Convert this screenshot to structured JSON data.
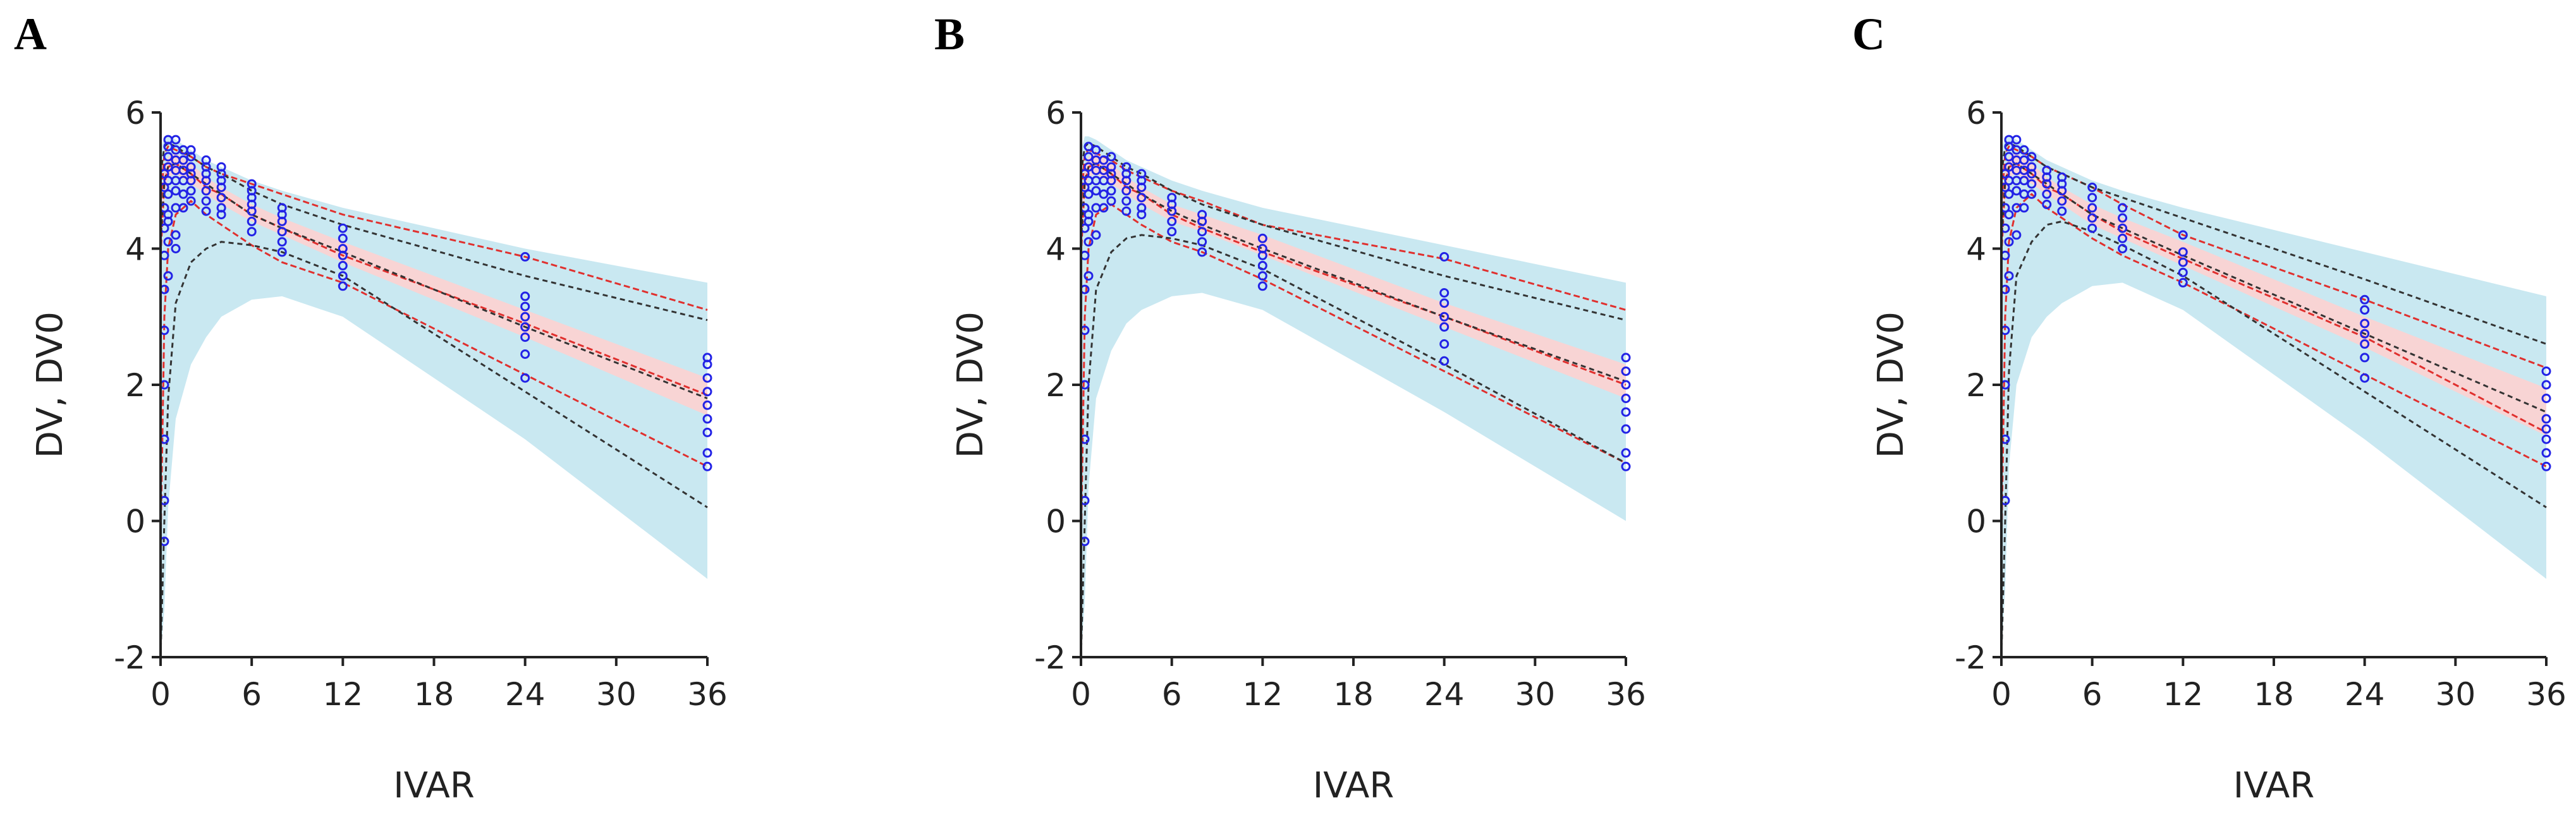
{
  "figure": {
    "panels": [
      "A",
      "B",
      "C"
    ]
  },
  "colors": {
    "blue_band": "#c9e8f1",
    "pink_band": "#f8d4d4",
    "observed_line": "#e0302e",
    "predicted_line": "#333333",
    "points": "#2323e6",
    "axis": "#222222"
  },
  "chart_data": [
    {
      "panel": "A",
      "type": "line",
      "xlabel": "IVAR",
      "ylabel": "DV, DV0",
      "xlim": [
        0,
        36
      ],
      "ylim": [
        -2,
        6
      ],
      "xticks": [
        0,
        6,
        12,
        18,
        24,
        30,
        36
      ],
      "yticks": [
        -2,
        0,
        2,
        4,
        6
      ],
      "x": [
        0,
        0.25,
        0.5,
        1,
        2,
        3,
        4,
        6,
        8,
        12,
        24,
        36
      ],
      "bands": [
        {
          "name": "prediction interval (blue)",
          "upper": [
            5.45,
            5.65,
            5.65,
            5.6,
            5.45,
            5.3,
            5.2,
            5.0,
            4.85,
            4.6,
            4.0,
            3.5
          ],
          "lower": [
            -2.0,
            -1.3,
            0.2,
            1.5,
            2.3,
            2.7,
            3.0,
            3.25,
            3.3,
            3.0,
            1.2,
            -0.85
          ]
        },
        {
          "name": "median interval (pink)",
          "upper": [
            4.4,
            5.2,
            5.35,
            5.4,
            5.25,
            5.05,
            4.9,
            4.65,
            4.45,
            4.1,
            3.1,
            2.1
          ],
          "lower": [
            3.8,
            4.8,
            5.05,
            5.1,
            4.95,
            4.8,
            4.65,
            4.4,
            4.2,
            3.8,
            2.7,
            1.55
          ]
        }
      ],
      "series": [
        {
          "name": "observed 95th",
          "style": "red-dash",
          "values": [
            4.6,
            5.4,
            5.5,
            5.45,
            5.35,
            5.2,
            5.1,
            4.95,
            4.8,
            4.5,
            3.88,
            3.1
          ]
        },
        {
          "name": "observed median",
          "style": "red-dash",
          "values": [
            3.9,
            4.95,
            5.2,
            5.25,
            5.1,
            4.9,
            4.8,
            4.5,
            4.3,
            3.9,
            2.9,
            1.85
          ]
        },
        {
          "name": "observed 5th",
          "style": "red-dash",
          "values": [
            -0.4,
            3.0,
            4.0,
            4.5,
            4.7,
            4.5,
            4.35,
            4.05,
            3.8,
            3.5,
            2.15,
            0.8
          ]
        },
        {
          "name": "predicted 95th",
          "style": "black-dash",
          "values": [
            5.1,
            5.5,
            5.55,
            5.5,
            5.35,
            5.2,
            5.1,
            4.85,
            4.65,
            4.35,
            3.6,
            2.95
          ]
        },
        {
          "name": "predicted median",
          "style": "black-dash",
          "values": [
            4.1,
            5.0,
            5.2,
            5.25,
            5.1,
            4.95,
            4.8,
            4.5,
            4.3,
            3.95,
            2.85,
            1.8
          ]
        },
        {
          "name": "predicted 5th",
          "style": "black-dash",
          "values": [
            -2.0,
            0.0,
            1.8,
            3.2,
            3.8,
            4.0,
            4.1,
            4.05,
            3.95,
            3.6,
            1.9,
            0.2
          ]
        }
      ],
      "observations": [
        {
          "x": 0.25,
          "y": [
            0.3,
            1.2,
            2.0,
            2.8,
            3.4,
            3.9,
            4.3,
            4.6,
            4.9,
            5.1,
            -0.3
          ]
        },
        {
          "x": 0.5,
          "y": [
            3.6,
            4.1,
            4.5,
            4.8,
            5.0,
            5.2,
            5.35,
            5.5,
            5.6,
            4.4
          ]
        },
        {
          "x": 1,
          "y": [
            4.2,
            4.6,
            4.85,
            5.0,
            5.15,
            5.3,
            5.45,
            5.6,
            4.0
          ]
        },
        {
          "x": 1.5,
          "y": [
            4.6,
            4.8,
            5.0,
            5.15,
            5.3,
            5.45
          ]
        },
        {
          "x": 2,
          "y": [
            4.7,
            4.85,
            5.0,
            5.1,
            5.2,
            5.35,
            5.45
          ]
        },
        {
          "x": 3,
          "y": [
            4.55,
            4.7,
            4.85,
            5.0,
            5.1,
            5.2,
            5.3
          ]
        },
        {
          "x": 4,
          "y": [
            4.5,
            4.6,
            4.75,
            4.9,
            5.0,
            5.1,
            5.2
          ]
        },
        {
          "x": 6,
          "y": [
            4.25,
            4.4,
            4.55,
            4.65,
            4.75,
            4.85,
            4.95
          ]
        },
        {
          "x": 8,
          "y": [
            3.95,
            4.1,
            4.25,
            4.4,
            4.5,
            4.6
          ]
        },
        {
          "x": 12,
          "y": [
            3.45,
            3.6,
            3.75,
            3.9,
            4.0,
            4.15,
            4.3
          ]
        },
        {
          "x": 24,
          "y": [
            2.1,
            2.45,
            2.7,
            2.85,
            3.0,
            3.15,
            3.3,
            3.88
          ]
        },
        {
          "x": 36,
          "y": [
            0.8,
            1.0,
            1.3,
            1.5,
            1.7,
            1.9,
            2.1,
            2.3,
            2.4
          ]
        }
      ]
    },
    {
      "panel": "B",
      "type": "line",
      "xlabel": "IVAR",
      "ylabel": "DV, DV0",
      "xlim": [
        0,
        36
      ],
      "ylim": [
        -2,
        6
      ],
      "xticks": [
        0,
        6,
        12,
        18,
        24,
        30,
        36
      ],
      "yticks": [
        -2,
        0,
        2,
        4,
        6
      ],
      "x": [
        0,
        0.25,
        0.5,
        1,
        2,
        3,
        4,
        6,
        8,
        12,
        24,
        36
      ],
      "bands": [
        {
          "name": "prediction interval (blue)",
          "upper": [
            5.45,
            5.65,
            5.65,
            5.6,
            5.45,
            5.3,
            5.2,
            5.0,
            4.85,
            4.6,
            4.05,
            3.5
          ],
          "lower": [
            -2.0,
            -1.2,
            0.5,
            1.8,
            2.5,
            2.9,
            3.1,
            3.3,
            3.35,
            3.1,
            1.6,
            0.0
          ]
        },
        {
          "name": "median interval (pink)",
          "upper": [
            4.4,
            5.2,
            5.35,
            5.4,
            5.25,
            5.05,
            4.9,
            4.65,
            4.5,
            4.2,
            3.2,
            2.3
          ]
        },
        {
          "name": "median interval lower",
          "upper": [
            3.8,
            4.8,
            5.05,
            5.1,
            4.95,
            4.8,
            4.65,
            4.4,
            4.25,
            3.9,
            2.85,
            1.8
          ]
        }
      ],
      "series": [
        {
          "name": "observed 95th",
          "style": "red-dash",
          "values": [
            4.6,
            5.4,
            5.45,
            5.4,
            5.3,
            5.15,
            5.05,
            4.85,
            4.7,
            4.35,
            3.85,
            3.1
          ]
        },
        {
          "name": "observed median",
          "style": "red-dash",
          "values": [
            3.9,
            4.95,
            5.2,
            5.25,
            5.1,
            4.9,
            4.8,
            4.5,
            4.3,
            3.95,
            3.0,
            2.0
          ]
        },
        {
          "name": "observed 5th",
          "style": "red-dash",
          "values": [
            -0.4,
            3.0,
            4.0,
            4.5,
            4.65,
            4.5,
            4.35,
            4.1,
            3.95,
            3.55,
            2.2,
            0.85
          ]
        },
        {
          "name": "predicted 95th",
          "style": "black-dash",
          "values": [
            5.1,
            5.5,
            5.55,
            5.5,
            5.35,
            5.2,
            5.1,
            4.85,
            4.65,
            4.35,
            3.6,
            2.95
          ]
        },
        {
          "name": "predicted median",
          "style": "black-dash",
          "values": [
            4.1,
            5.0,
            5.2,
            5.25,
            5.1,
            4.95,
            4.8,
            4.55,
            4.35,
            4.0,
            3.0,
            2.05
          ]
        },
        {
          "name": "predicted 5th",
          "style": "black-dash",
          "values": [
            -2.0,
            0.0,
            2.0,
            3.4,
            3.95,
            4.15,
            4.2,
            4.15,
            4.05,
            3.7,
            2.3,
            0.85
          ]
        }
      ],
      "observations": [
        {
          "x": 0.25,
          "y": [
            0.3,
            1.2,
            2.0,
            2.8,
            3.4,
            3.9,
            4.3,
            4.6,
            4.9,
            5.1,
            -0.3
          ]
        },
        {
          "x": 0.5,
          "y": [
            3.6,
            4.1,
            4.5,
            4.8,
            5.0,
            5.2,
            5.35,
            5.5,
            4.4
          ]
        },
        {
          "x": 1,
          "y": [
            4.2,
            4.6,
            4.85,
            5.0,
            5.15,
            5.3,
            5.45
          ]
        },
        {
          "x": 1.5,
          "y": [
            4.6,
            4.8,
            5.0,
            5.15,
            5.3
          ]
        },
        {
          "x": 2,
          "y": [
            4.7,
            4.85,
            5.0,
            5.1,
            5.2,
            5.35
          ]
        },
        {
          "x": 3,
          "y": [
            4.55,
            4.7,
            4.85,
            5.0,
            5.1,
            5.2
          ]
        },
        {
          "x": 4,
          "y": [
            4.5,
            4.6,
            4.75,
            4.9,
            5.0,
            5.1
          ]
        },
        {
          "x": 6,
          "y": [
            4.25,
            4.4,
            4.55,
            4.65,
            4.75
          ]
        },
        {
          "x": 8,
          "y": [
            3.95,
            4.1,
            4.25,
            4.4,
            4.5
          ]
        },
        {
          "x": 12,
          "y": [
            3.45,
            3.6,
            3.75,
            3.9,
            4.0,
            4.15
          ]
        },
        {
          "x": 24,
          "y": [
            2.35,
            2.6,
            2.85,
            3.0,
            3.2,
            3.35,
            3.88
          ]
        },
        {
          "x": 36,
          "y": [
            0.8,
            1.0,
            1.35,
            1.6,
            1.8,
            2.0,
            2.2,
            2.4
          ]
        }
      ]
    },
    {
      "panel": "C",
      "type": "line",
      "xlabel": "IVAR",
      "ylabel": "DV, DV0",
      "xlim": [
        0,
        36
      ],
      "ylim": [
        -2,
        6
      ],
      "xticks": [
        0,
        6,
        12,
        18,
        24,
        30,
        36
      ],
      "yticks": [
        -2,
        0,
        2,
        4,
        6
      ],
      "x": [
        0,
        0.25,
        0.5,
        1,
        2,
        3,
        4,
        6,
        8,
        12,
        24,
        36
      ],
      "bands": [
        {
          "name": "prediction interval (blue)",
          "upper": [
            5.45,
            5.65,
            5.65,
            5.6,
            5.45,
            5.3,
            5.2,
            5.0,
            4.85,
            4.6,
            3.95,
            3.3
          ]
        },
        {
          "name": "prediction interval lower",
          "upper": [
            -2.0,
            -1.0,
            0.8,
            2.0,
            2.7,
            3.0,
            3.2,
            3.45,
            3.5,
            3.1,
            1.2,
            -0.85
          ]
        },
        {
          "name": "median interval (pink)",
          "upper": [
            4.4,
            5.2,
            5.35,
            5.4,
            5.25,
            5.05,
            4.9,
            4.65,
            4.45,
            4.1,
            3.0,
            1.95
          ]
        },
        {
          "name": "median interval lower",
          "upper": [
            3.8,
            4.8,
            5.05,
            5.1,
            4.95,
            4.8,
            4.65,
            4.35,
            4.15,
            3.75,
            2.55,
            1.25
          ]
        }
      ],
      "series": [
        {
          "name": "observed 95th",
          "style": "red-dash",
          "values": [
            4.6,
            5.4,
            5.5,
            5.45,
            5.35,
            5.2,
            5.1,
            4.9,
            4.65,
            4.2,
            3.25,
            2.25
          ]
        },
        {
          "name": "observed median",
          "style": "red-dash",
          "values": [
            3.9,
            4.95,
            5.2,
            5.25,
            5.1,
            4.9,
            4.8,
            4.5,
            4.25,
            3.85,
            2.7,
            1.3
          ]
        },
        {
          "name": "observed 5th",
          "style": "red-dash",
          "values": [
            -0.4,
            3.0,
            4.1,
            4.6,
            4.8,
            4.6,
            4.45,
            4.15,
            3.9,
            3.5,
            2.15,
            0.8
          ]
        },
        {
          "name": "predicted 95th",
          "style": "black-dash",
          "values": [
            5.1,
            5.5,
            5.55,
            5.5,
            5.35,
            5.2,
            5.1,
            4.9,
            4.75,
            4.45,
            3.55,
            2.6
          ]
        },
        {
          "name": "predicted median",
          "style": "black-dash",
          "values": [
            4.1,
            5.0,
            5.2,
            5.25,
            5.1,
            4.95,
            4.8,
            4.5,
            4.3,
            3.9,
            2.75,
            1.6
          ]
        },
        {
          "name": "predicted 5th",
          "style": "black-dash",
          "values": [
            -2.0,
            0.0,
            2.2,
            3.6,
            4.1,
            4.35,
            4.4,
            4.25,
            4.05,
            3.6,
            1.9,
            0.2
          ]
        }
      ],
      "observations": [
        {
          "x": 0.25,
          "y": [
            0.3,
            1.2,
            2.0,
            2.8,
            3.4,
            3.9,
            4.3,
            4.6,
            4.9,
            5.1
          ]
        },
        {
          "x": 0.5,
          "y": [
            3.6,
            4.1,
            4.5,
            4.8,
            5.0,
            5.2,
            5.35,
            5.5,
            5.6
          ]
        },
        {
          "x": 1,
          "y": [
            4.2,
            4.6,
            4.85,
            5.0,
            5.15,
            5.3,
            5.45,
            5.6
          ]
        },
        {
          "x": 1.5,
          "y": [
            4.6,
            4.8,
            5.0,
            5.15,
            5.3,
            5.45
          ]
        },
        {
          "x": 2,
          "y": [
            4.8,
            4.95,
            5.1,
            5.2,
            5.35
          ]
        },
        {
          "x": 3,
          "y": [
            4.65,
            4.8,
            4.95,
            5.05,
            5.15
          ]
        },
        {
          "x": 4,
          "y": [
            4.55,
            4.7,
            4.85,
            4.95,
            5.05
          ]
        },
        {
          "x": 6,
          "y": [
            4.3,
            4.45,
            4.6,
            4.75,
            4.9
          ]
        },
        {
          "x": 8,
          "y": [
            4.0,
            4.15,
            4.3,
            4.45,
            4.6
          ]
        },
        {
          "x": 12,
          "y": [
            3.5,
            3.65,
            3.8,
            3.95,
            4.2
          ]
        },
        {
          "x": 24,
          "y": [
            2.1,
            2.4,
            2.6,
            2.75,
            2.9,
            3.1,
            3.25
          ]
        },
        {
          "x": 36,
          "y": [
            0.8,
            1.0,
            1.2,
            1.35,
            1.5,
            1.8,
            2.0,
            2.2
          ]
        }
      ]
    }
  ]
}
